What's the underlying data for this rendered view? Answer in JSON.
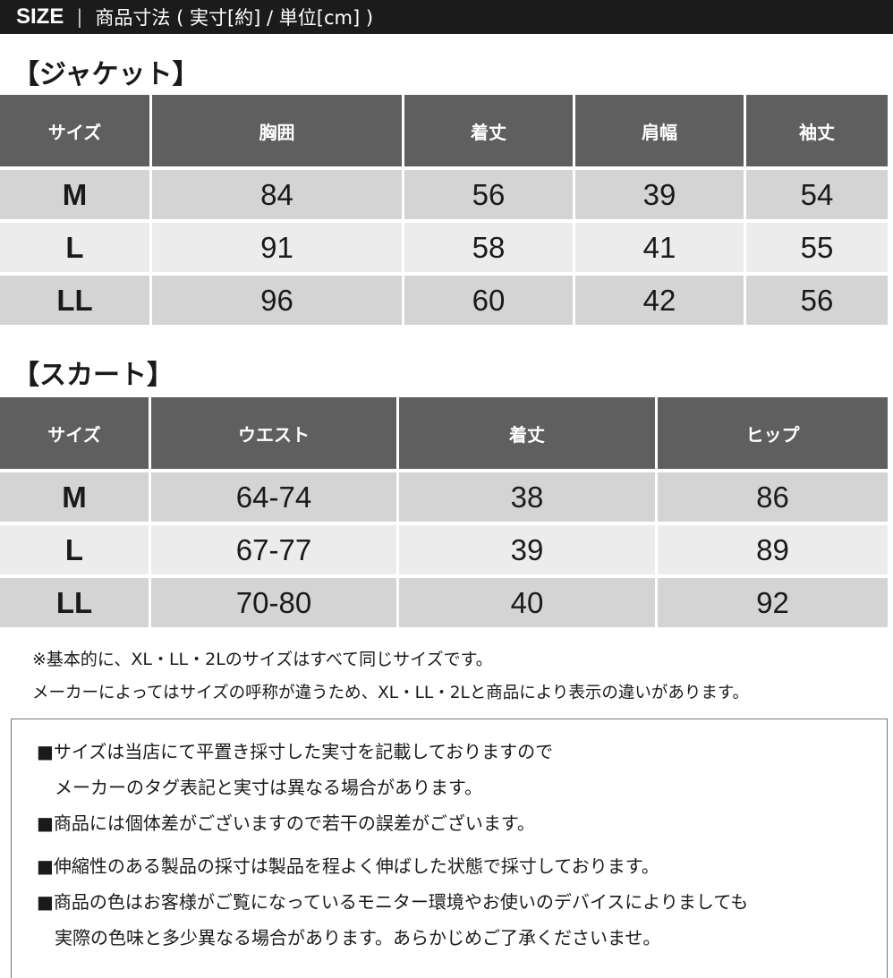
{
  "header": {
    "size_label": "SIZE",
    "separator": "|",
    "subtitle": "商品寸法 ( 実寸[約] / 単位[cm] )"
  },
  "jacket": {
    "title": "【ジャケット】",
    "columns": [
      "サイズ",
      "胸囲",
      "着丈",
      "肩幅",
      "袖丈"
    ],
    "rows": [
      [
        "M",
        "84",
        "56",
        "39",
        "54"
      ],
      [
        "L",
        "91",
        "58",
        "41",
        "55"
      ],
      [
        "LL",
        "96",
        "60",
        "42",
        "56"
      ]
    ]
  },
  "skirt": {
    "title": "【スカート】",
    "columns": [
      "サイズ",
      "ウエスト",
      "着丈",
      "ヒップ"
    ],
    "rows": [
      [
        "M",
        "64-74",
        "38",
        "86"
      ],
      [
        "L",
        "67-77",
        "39",
        "89"
      ],
      [
        "LL",
        "70-80",
        "40",
        "92"
      ]
    ]
  },
  "notes": [
    "※基本的に、XL・LL・2Lのサイズはすべて同じサイズです。",
    "メーカーによってはサイズの呼称が違うため、XL・LL・2Lと商品により表示の違いがあります。"
  ],
  "disclaimer": [
    "■サイズは当店にて平置き採寸した実寸を記載しておりますので",
    "　メーカーのタグ表記と実寸は異なる場合があります。",
    "■商品には個体差がございますので若干の誤差がございます。",
    "■伸縮性のある製品の採寸は製品を程よく伸ばした状態で採寸しております。",
    "■商品の色はお客様がご覧になっているモニター環境やお使いのデバイスによりましても",
    "　実際の色味と多少異なる場合があります。あらかじめご了承くださいませ。"
  ]
}
